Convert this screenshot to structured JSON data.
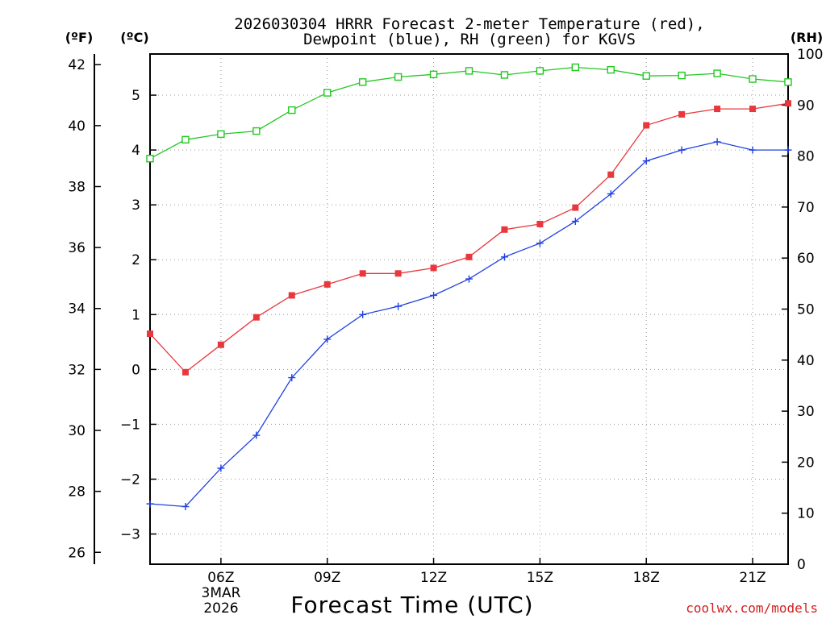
{
  "chart_data": {
    "type": "line",
    "title": [
      "2026030304 HRRR Forecast 2-meter Temperature (red),",
      "Dewpoint (blue), RH (green) for KGVS"
    ],
    "xlabel": "Forecast Time (UTC)",
    "units": {
      "fahrenheit": "(ºF)",
      "celsius": "(ºC)",
      "rh": "(RH)"
    },
    "date_label": [
      "3MAR",
      "2026"
    ],
    "credit": "coolwx.com/models",
    "x_hours": [
      4,
      5,
      6,
      7,
      8,
      9,
      10,
      11,
      12,
      13,
      14,
      15,
      16,
      17,
      18,
      19,
      20,
      21,
      22
    ],
    "xlim": [
      4,
      22
    ],
    "x_ticks": [
      {
        "hour": 6,
        "label": "06Z"
      },
      {
        "hour": 9,
        "label": "09Z"
      },
      {
        "hour": 12,
        "label": "12Z"
      },
      {
        "hour": 15,
        "label": "15Z"
      },
      {
        "hour": 18,
        "label": "18Z"
      },
      {
        "hour": 21,
        "label": "21Z"
      }
    ],
    "y_celsius": {
      "lim": [
        -3.55,
        5.75
      ],
      "ticks": [
        -3,
        -2,
        -1,
        0,
        1,
        2,
        3,
        4,
        5
      ],
      "labels": [
        "−3",
        "−2",
        "−1",
        "0",
        "1",
        "2",
        "3",
        "4",
        "5"
      ]
    },
    "y_fahrenheit": {
      "ticks": [
        26,
        28,
        30,
        32,
        34,
        36,
        38,
        40,
        42
      ],
      "labels": [
        "26",
        "28",
        "30",
        "32",
        "34",
        "36",
        "38",
        "40",
        "42"
      ]
    },
    "y_rh": {
      "lim": [
        0,
        100
      ],
      "ticks": [
        0,
        10,
        20,
        30,
        40,
        50,
        60,
        70,
        80,
        90,
        100
      ],
      "labels": [
        "0",
        "10",
        "20",
        "30",
        "40",
        "50",
        "60",
        "70",
        "80",
        "90",
        "100"
      ]
    },
    "series": [
      {
        "name": "Temperature",
        "axis": "celsius",
        "color": "#e8383d",
        "marker": "filled-square",
        "values": [
          0.65,
          -0.05,
          0.45,
          0.95,
          1.35,
          1.55,
          1.75,
          1.75,
          1.85,
          2.05,
          2.55,
          2.65,
          2.95,
          3.55,
          4.45,
          4.65,
          4.75,
          4.75,
          4.85
        ]
      },
      {
        "name": "Dewpoint",
        "axis": "celsius",
        "color": "#2040e0",
        "marker": "plus",
        "values": [
          -2.45,
          -2.5,
          -1.8,
          -1.2,
          -0.15,
          0.55,
          1.0,
          1.15,
          1.35,
          1.65,
          2.05,
          2.3,
          2.7,
          3.2,
          3.8,
          4.0,
          4.15,
          4.0,
          4.0
        ]
      },
      {
        "name": "RH",
        "axis": "rh",
        "color": "#20c820",
        "marker": "open-square",
        "values": [
          79.5,
          83.2,
          84.3,
          84.9,
          89.0,
          92.4,
          94.5,
          95.5,
          96.0,
          96.7,
          95.9,
          96.7,
          97.4,
          96.9,
          95.7,
          95.8,
          96.2,
          95.1,
          94.5
        ]
      }
    ]
  }
}
